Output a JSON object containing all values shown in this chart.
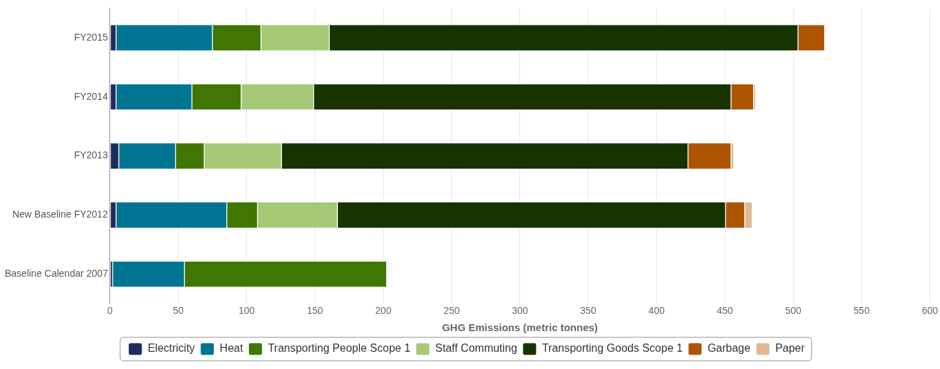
{
  "chart_data": {
    "type": "bar",
    "orientation": "horizontal",
    "stacked": true,
    "categories": [
      "FY2015",
      "FY2014",
      "FY2013",
      "New Baseline FY2012",
      "Baseline Calendar 2007"
    ],
    "series": [
      {
        "name": "Electricity",
        "color": "#1f2d5c",
        "values": [
          4.5,
          4.5,
          6.5,
          4.5,
          2
        ]
      },
      {
        "name": "Heat",
        "color": "#007591",
        "values": [
          70.5,
          55.5,
          41.5,
          81,
          52.5
        ]
      },
      {
        "name": "Transporting People Scope 1",
        "color": "#3f7702",
        "values": [
          35.5,
          36,
          21,
          22.5,
          148
        ]
      },
      {
        "name": "Staff Commuting",
        "color": "#a6c978",
        "values": [
          50,
          53,
          56.5,
          58.5,
          null
        ]
      },
      {
        "name": "Transporting Goods Scope 1",
        "color": "#163300",
        "values": [
          343,
          305.5,
          297.5,
          284,
          null
        ]
      },
      {
        "name": "Garbage",
        "color": "#ad5400",
        "values": [
          19.5,
          16.5,
          31.5,
          14,
          null
        ]
      },
      {
        "name": "Paper",
        "color": "#dfb995",
        "values": [
          null,
          1.5,
          2,
          5.5,
          null
        ]
      }
    ],
    "xlabel": "GHG Emissions (metric tonnes)",
    "xlim": [
      0,
      600
    ],
    "xticks": [
      0,
      50,
      100,
      150,
      200,
      250,
      300,
      350,
      400,
      450,
      500,
      550,
      600
    ],
    "grid": "x",
    "legend": "bottom"
  }
}
